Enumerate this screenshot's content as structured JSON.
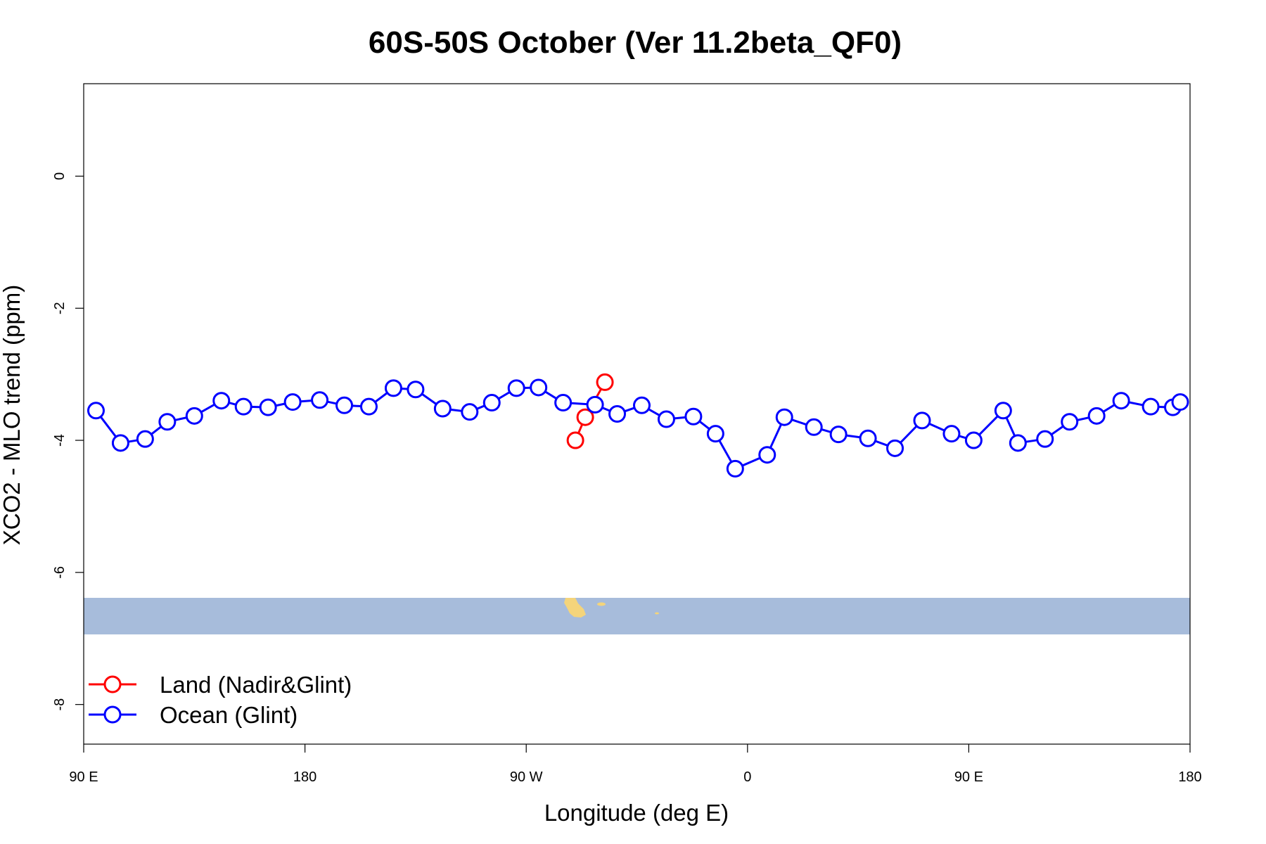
{
  "chart_data": {
    "type": "line",
    "title": "60S-50S October (Ver 11.2beta_QF0)",
    "xlabel": "Longitude (deg E)",
    "ylabel": "XCO2 - MLO trend (ppm)",
    "xlim": [
      90,
      540
    ],
    "ylim": [
      -8.6,
      1.4
    ],
    "x_ticks": [
      {
        "value": 90,
        "label": "90 E"
      },
      {
        "value": 180,
        "label": "180"
      },
      {
        "value": 270,
        "label": "90 W"
      },
      {
        "value": 360,
        "label": "0"
      },
      {
        "value": 450,
        "label": "90 E"
      },
      {
        "value": 540,
        "label": "180"
      }
    ],
    "y_ticks": [
      {
        "value": 0,
        "label": "0"
      },
      {
        "value": -2,
        "label": "-2"
      },
      {
        "value": -4,
        "label": "-4"
      },
      {
        "value": -6,
        "label": "-6"
      },
      {
        "value": -8,
        "label": "-8"
      }
    ],
    "grid": false,
    "legend_position": "bottom-left",
    "map_strip": {
      "y_top": -6.38,
      "y_bottom": -6.93,
      "ocean_color": "#a7bcdb",
      "land_color": "#f4d47b"
    },
    "series": [
      {
        "name": "Land (Nadir&Glint)",
        "color": "#ff0000",
        "x": [
          290,
          294,
          302
        ],
        "y": [
          -4.0,
          -3.65,
          -3.12
        ]
      },
      {
        "name": "Ocean (Glint)",
        "color": "#0000ff",
        "x": [
          95,
          105,
          115,
          124,
          135,
          146,
          155,
          165,
          175,
          186,
          196,
          206,
          216,
          225,
          236,
          247,
          256,
          266,
          275,
          285,
          298,
          307,
          317,
          327,
          338,
          347,
          355,
          368,
          375,
          387,
          397,
          409,
          420,
          431,
          443,
          452,
          464,
          470,
          481,
          491,
          502,
          512,
          524,
          533,
          536
        ],
        "y": [
          -3.55,
          -4.04,
          -3.98,
          -3.72,
          -3.63,
          -3.4,
          -3.49,
          -3.5,
          -3.42,
          -3.39,
          -3.47,
          -3.49,
          -3.21,
          -3.23,
          -3.52,
          -3.57,
          -3.43,
          -3.21,
          -3.2,
          -3.43,
          -3.46,
          -3.6,
          -3.47,
          -3.68,
          -3.64,
          -3.9,
          -4.43,
          -4.22,
          -3.65,
          -3.8,
          -3.91,
          -3.97,
          -4.12,
          -3.7,
          -3.9,
          -4.0,
          -3.55,
          -4.04,
          -3.98,
          -3.72,
          -3.63,
          -3.4,
          -3.49,
          -3.5,
          -3.42
        ]
      }
    ]
  }
}
